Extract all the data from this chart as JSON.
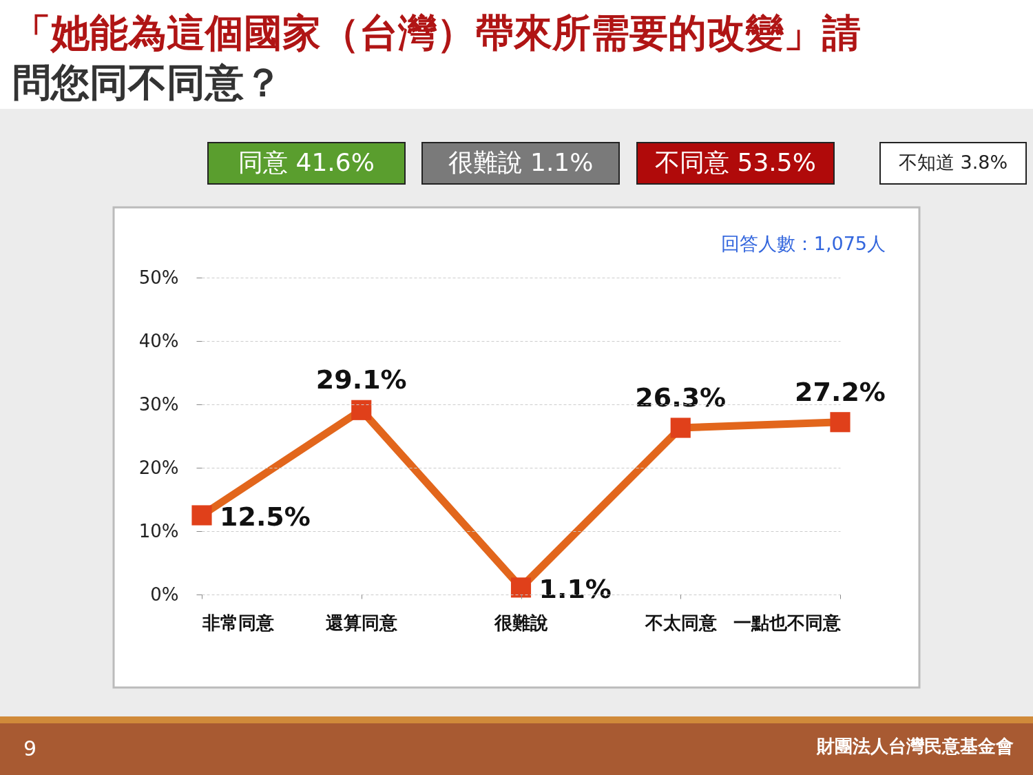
{
  "chart_data": {
    "type": "line",
    "title": "「她能為這個國家（台灣）帶來所需要的改變」請問您同不同意？",
    "categories": [
      "非常同意",
      "還算同意",
      "很難說",
      "不太同意",
      "一點也不同意"
    ],
    "series": [
      {
        "color": "#e2661c",
        "values": [
          12.5,
          29.1,
          1.1,
          26.3,
          27.2
        ]
      }
    ],
    "ylim": [
      0,
      50
    ],
    "yticks": [
      {
        "value": 0,
        "label": "0%"
      },
      {
        "value": 10,
        "label": "10%"
      },
      {
        "value": 20,
        "label": "20%"
      },
      {
        "value": 30,
        "label": "30%"
      },
      {
        "value": 40,
        "label": "40%"
      },
      {
        "value": 50,
        "label": "50%"
      }
    ],
    "value_labels": [
      "12.5%",
      "29.1%",
      "1.1%",
      "26.3%",
      "27.2%"
    ],
    "marker": "square",
    "line_style": "solid",
    "grid": "y",
    "legend": false,
    "annotations": [
      "同意 41.6%",
      "很難說 1.1%",
      "不同意 53.5%",
      "不知道 3.8%",
      "回答人數：1,075人",
      "9",
      "財團法人台灣民意基金會"
    ]
  }
}
